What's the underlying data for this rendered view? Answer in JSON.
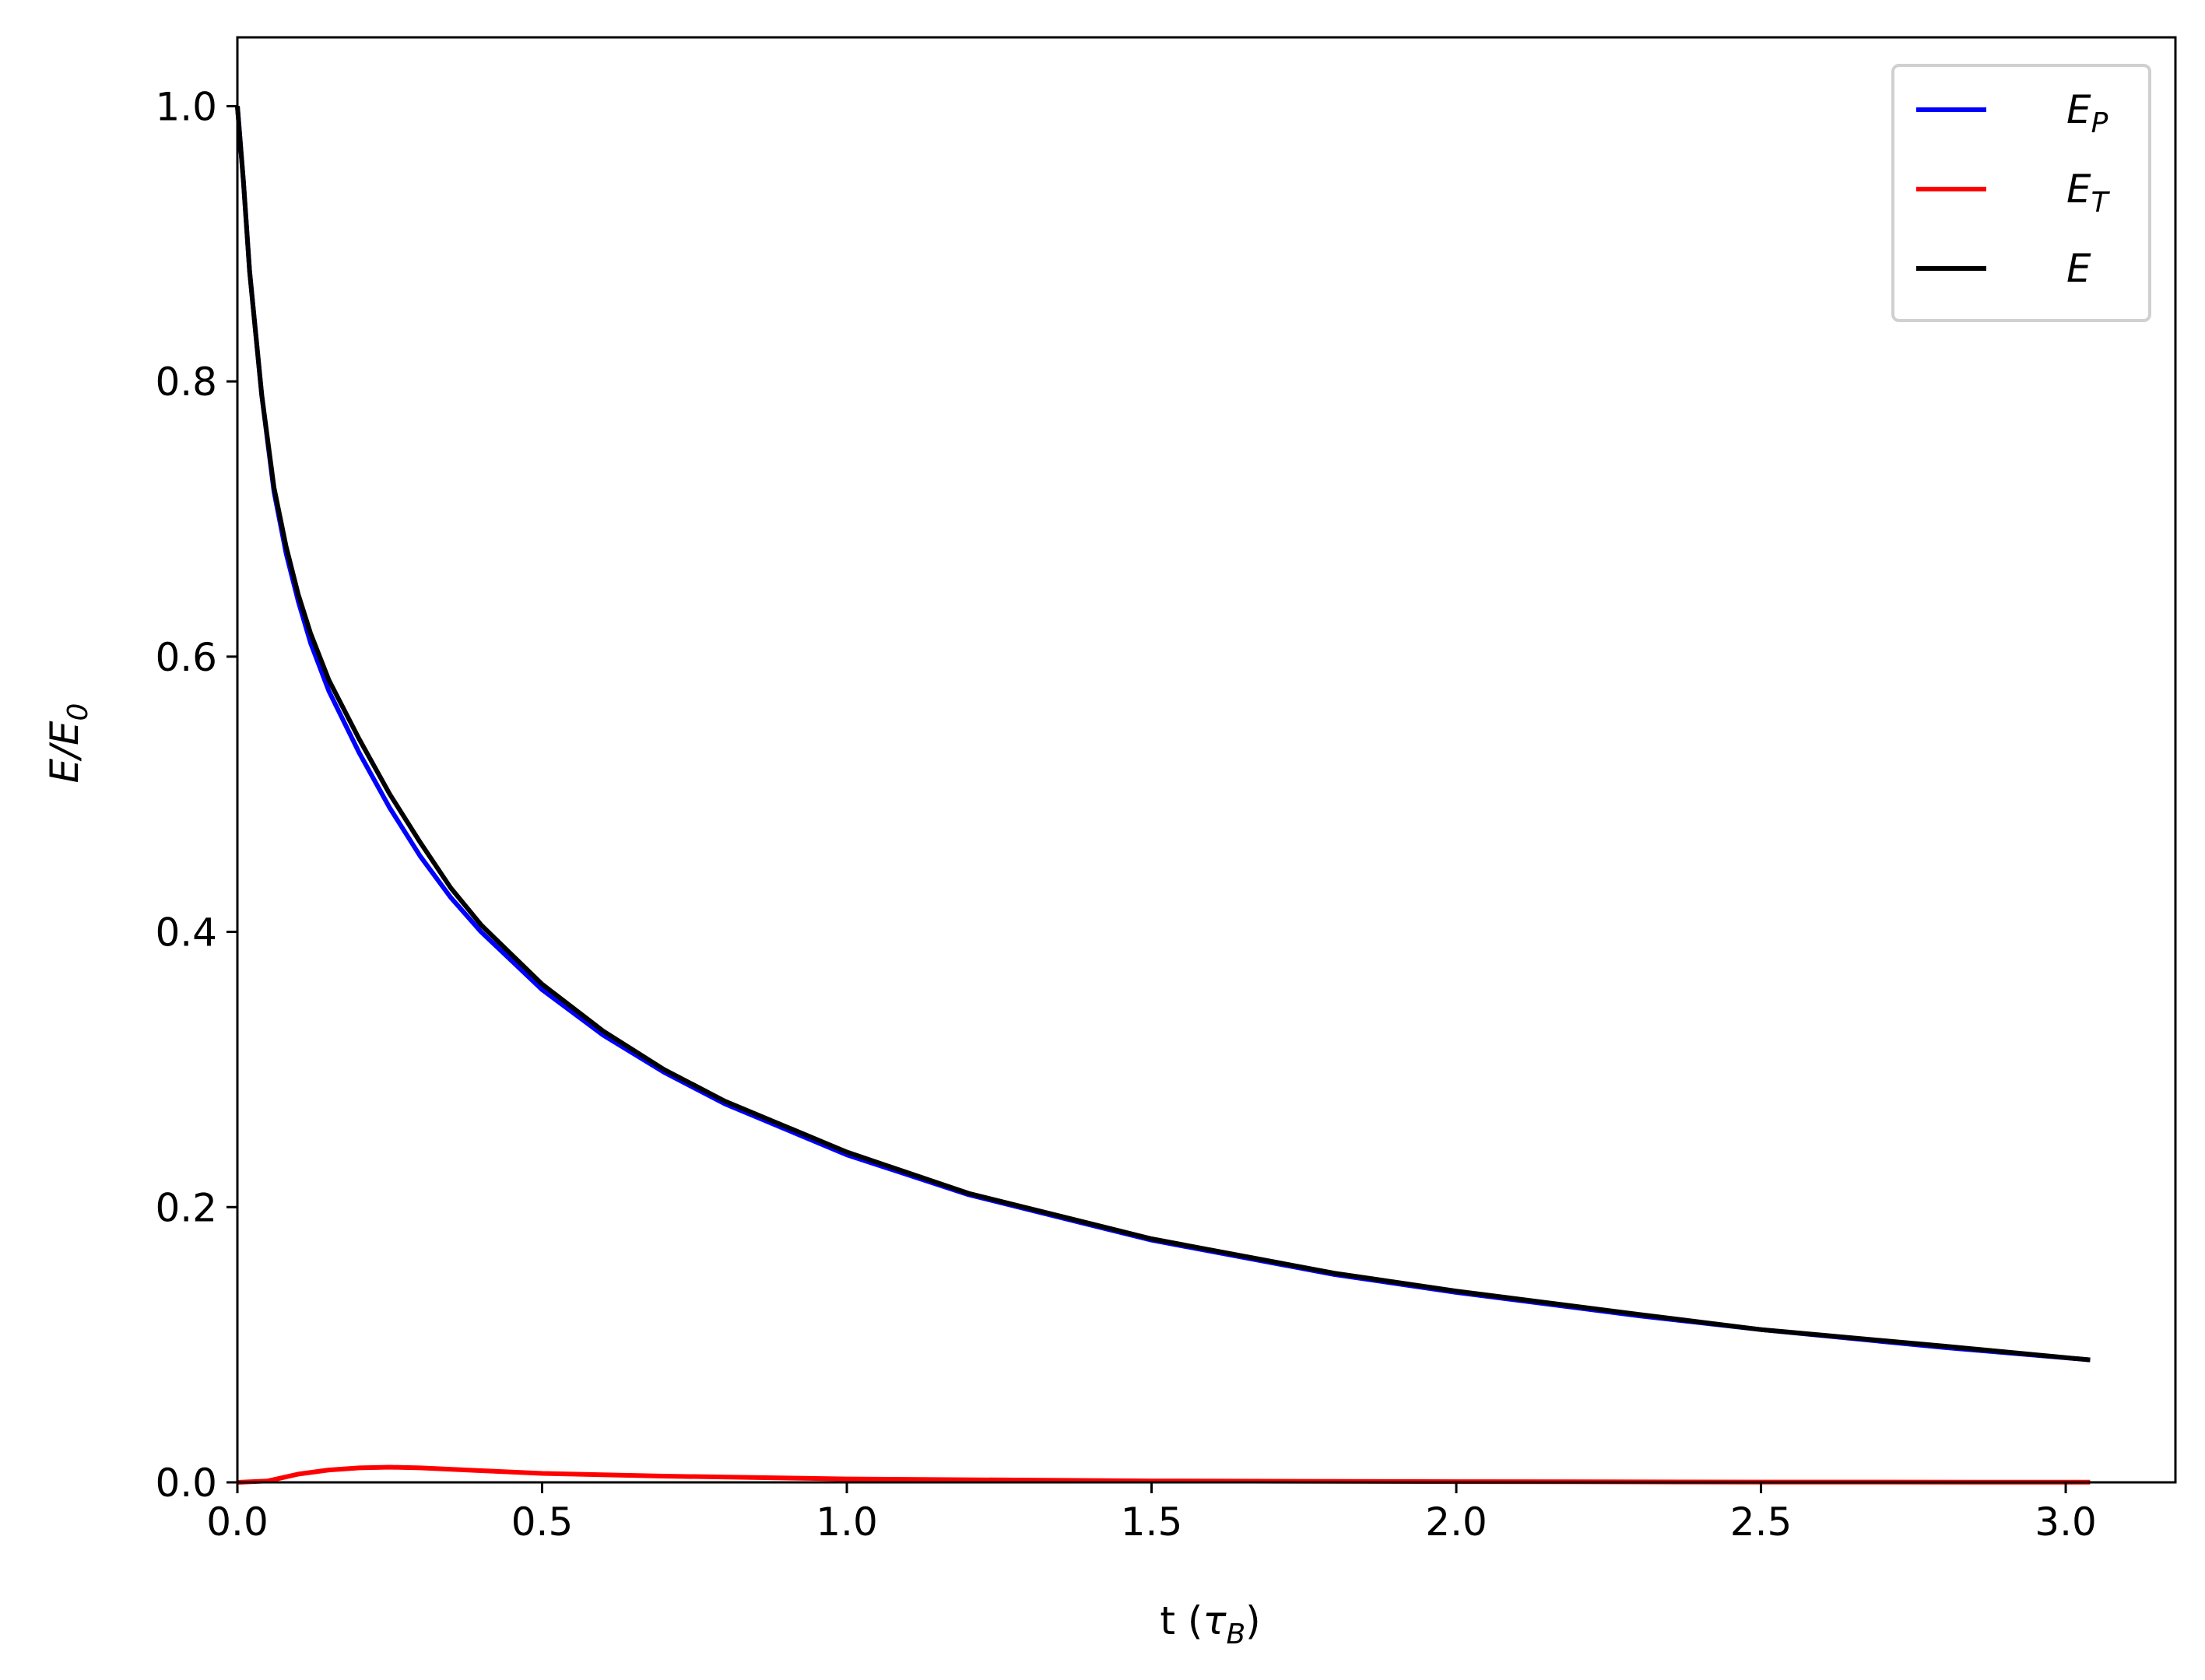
{
  "chart_data": {
    "type": "line",
    "xlabel": {
      "main": "t (",
      "symbol": "τ",
      "sub": "B",
      "end": ")"
    },
    "ylabel": {
      "a": "E",
      "slash": "/",
      "b": "E",
      "sub": "0"
    },
    "xlim": [
      0.0,
      3.18
    ],
    "ylim": [
      0.0,
      1.05
    ],
    "xticks": [
      0.0,
      0.5,
      1.0,
      1.5,
      2.0,
      2.5,
      3.0
    ],
    "xtick_labels": [
      "0.0",
      "0.5",
      "1.0",
      "1.5",
      "2.0",
      "2.5",
      "3.0"
    ],
    "yticks": [
      0.0,
      0.2,
      0.4,
      0.6,
      0.8,
      1.0
    ],
    "ytick_labels": [
      "0.0",
      "0.2",
      "0.4",
      "0.6",
      "0.8",
      "1.0"
    ],
    "grid": false,
    "legend_position": "top-right",
    "series": [
      {
        "name": "E_P",
        "label_main": "E",
        "label_sub": "P",
        "color": "#0000ff",
        "x": [
          0.0,
          0.01,
          0.02,
          0.04,
          0.06,
          0.08,
          0.1,
          0.12,
          0.15,
          0.2,
          0.25,
          0.3,
          0.35,
          0.4,
          0.5,
          0.6,
          0.7,
          0.8,
          1.0,
          1.2,
          1.5,
          1.8,
          2.0,
          2.3,
          2.5,
          2.8,
          3.04
        ],
        "y": [
          1.0,
          0.945,
          0.88,
          0.79,
          0.72,
          0.675,
          0.64,
          0.61,
          0.575,
          0.53,
          0.49,
          0.455,
          0.425,
          0.4,
          0.358,
          0.325,
          0.298,
          0.275,
          0.238,
          0.209,
          0.176,
          0.151,
          0.138,
          0.121,
          0.111,
          0.098,
          0.089
        ]
      },
      {
        "name": "E_T",
        "label_main": "E",
        "label_sub": "T",
        "color": "#ff0000",
        "x": [
          0.0,
          0.05,
          0.1,
          0.15,
          0.2,
          0.25,
          0.3,
          0.4,
          0.5,
          0.7,
          1.0,
          1.5,
          2.0,
          2.5,
          3.04
        ],
        "y": [
          0.0,
          0.001,
          0.006,
          0.009,
          0.0105,
          0.011,
          0.0105,
          0.0085,
          0.0065,
          0.0045,
          0.0025,
          0.001,
          0.0005,
          0.0002,
          0.0001
        ]
      },
      {
        "name": "E",
        "label_main": "E",
        "label_sub": "",
        "color": "#000000",
        "x": [
          0.0,
          0.01,
          0.02,
          0.04,
          0.06,
          0.08,
          0.1,
          0.12,
          0.15,
          0.2,
          0.25,
          0.3,
          0.35,
          0.4,
          0.5,
          0.6,
          0.7,
          0.8,
          1.0,
          1.2,
          1.5,
          1.8,
          2.0,
          2.3,
          2.5,
          2.8,
          3.04
        ],
        "y": [
          1.0,
          0.945,
          0.88,
          0.79,
          0.723,
          0.68,
          0.645,
          0.617,
          0.583,
          0.54,
          0.5,
          0.465,
          0.432,
          0.405,
          0.362,
          0.328,
          0.3,
          0.277,
          0.24,
          0.21,
          0.177,
          0.152,
          0.139,
          0.122,
          0.111,
          0.099,
          0.089
        ]
      }
    ]
  }
}
